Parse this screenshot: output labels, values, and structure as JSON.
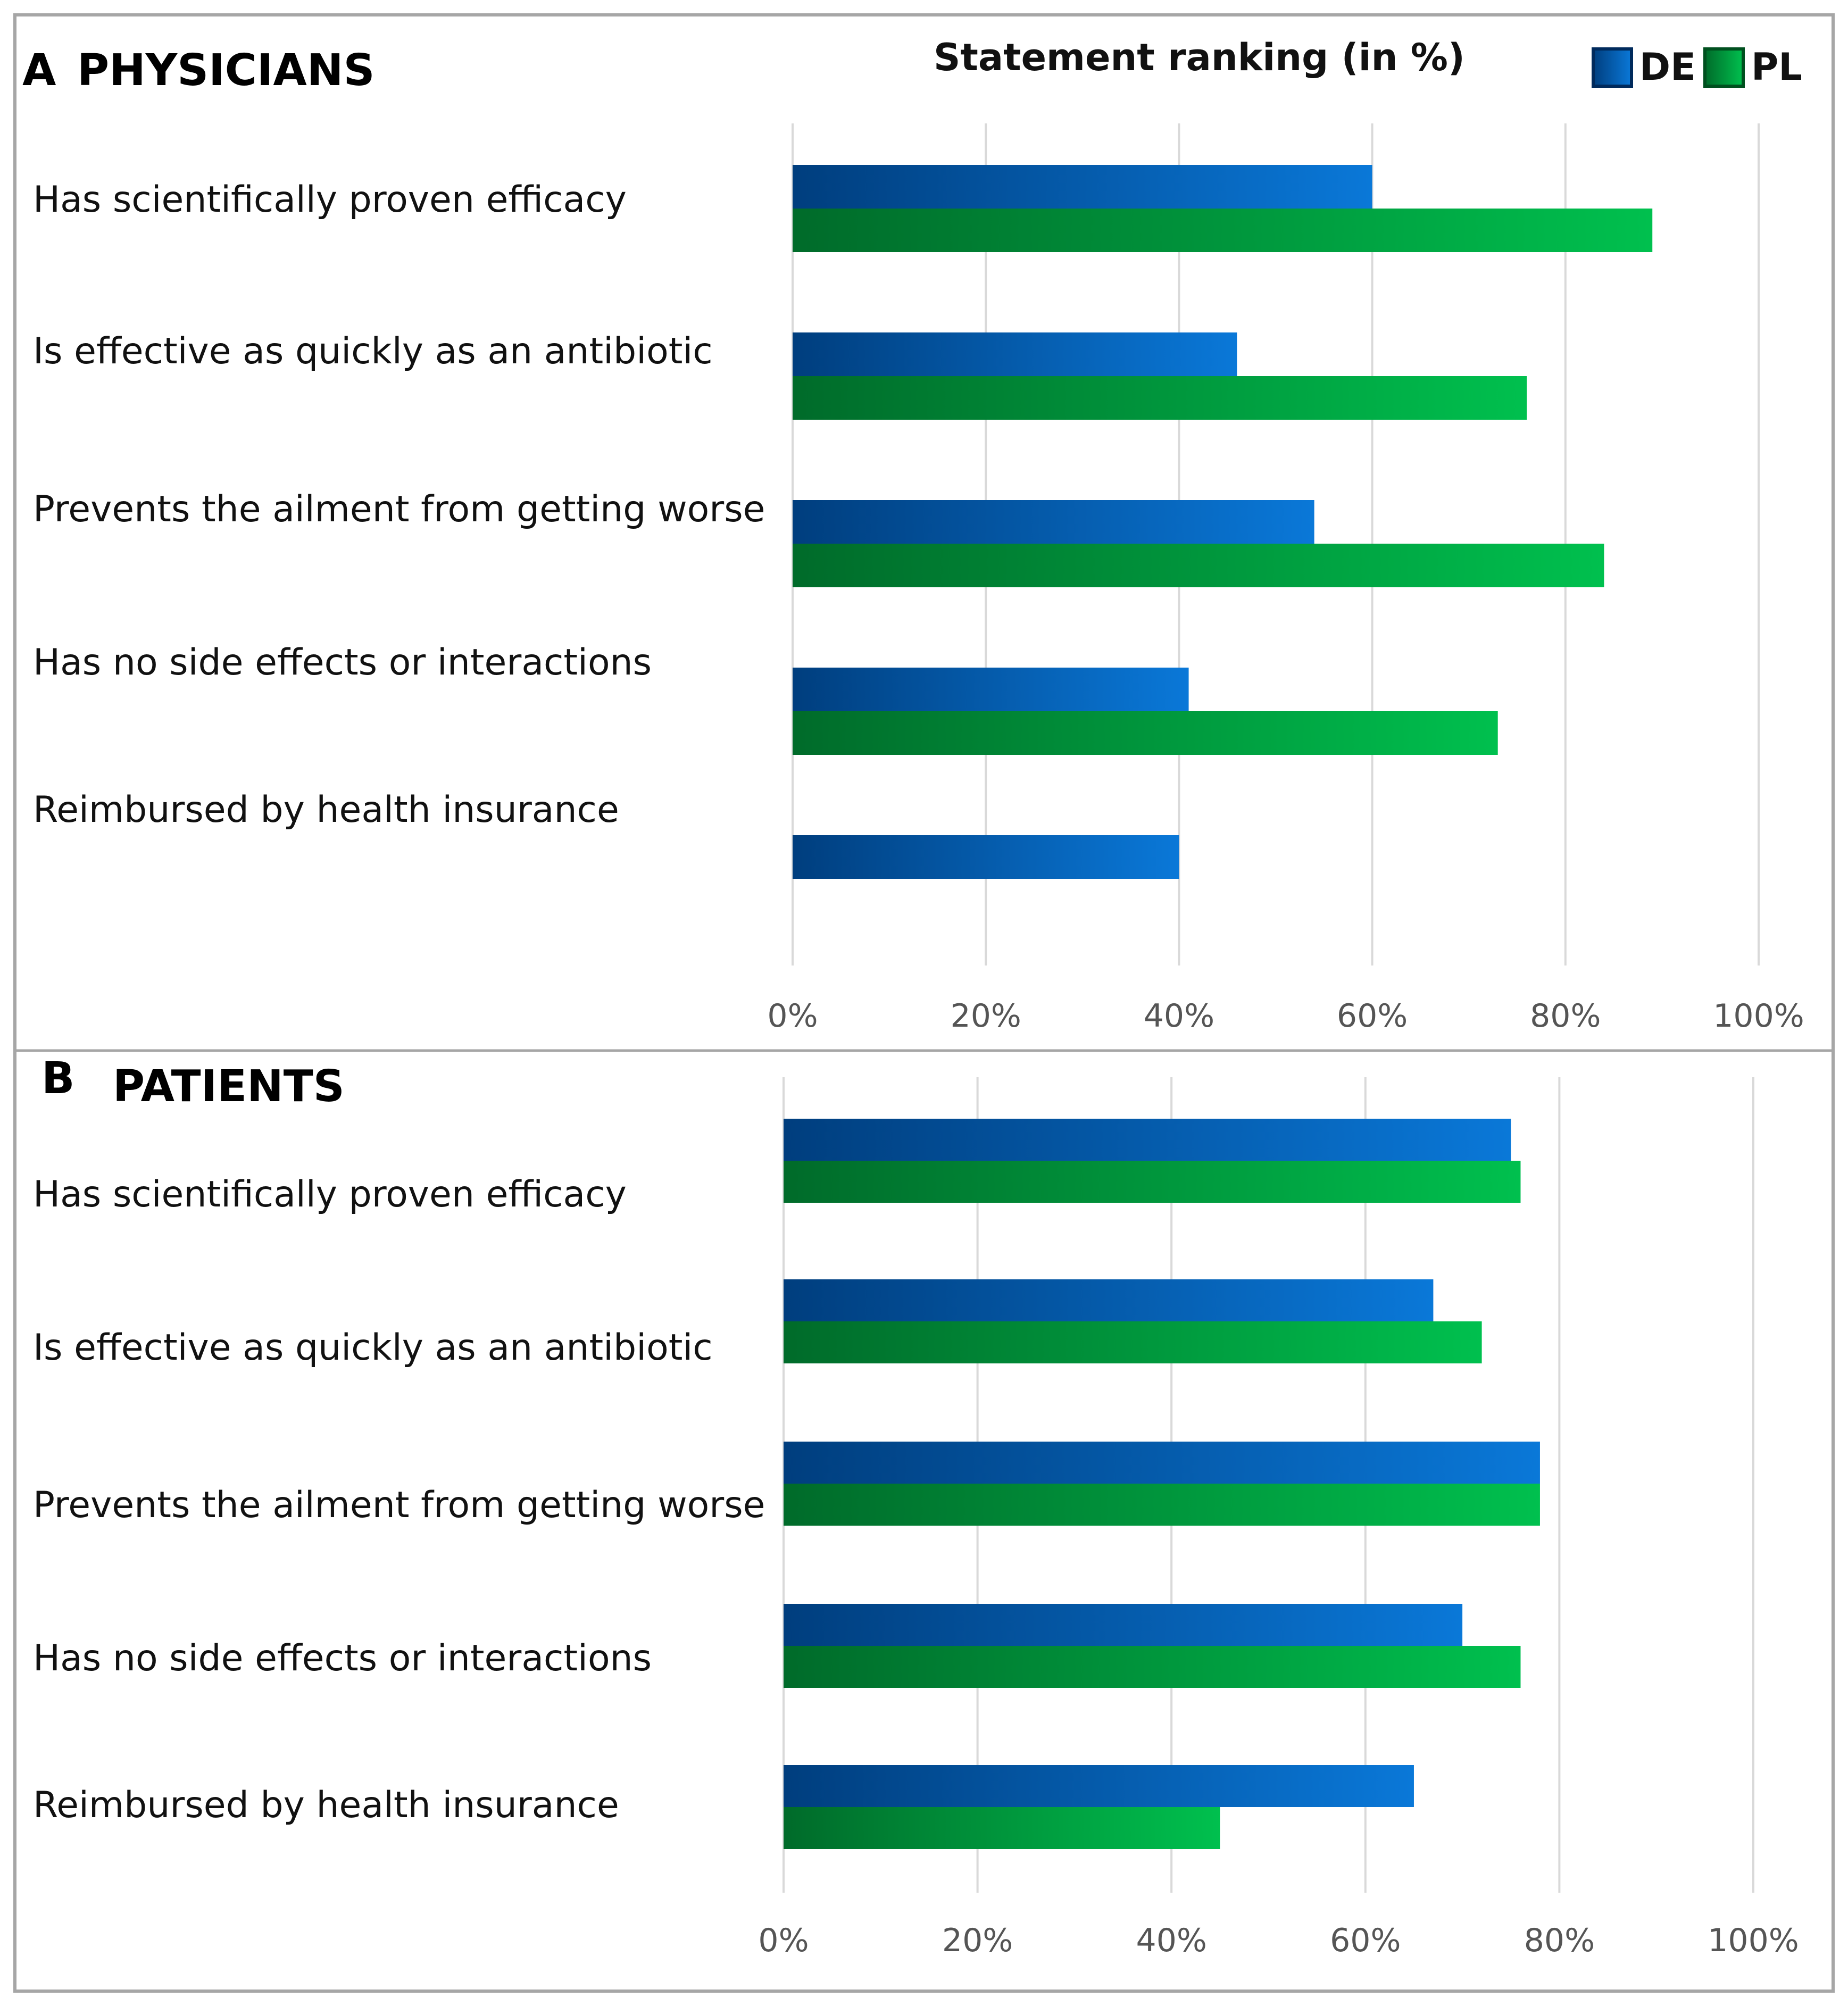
{
  "chart_data": [
    {
      "type": "bar",
      "orientation": "horizontal",
      "panel_letter": "A",
      "panel_title": "PHYSICIANS",
      "title": "Statement ranking (in %)",
      "categories": [
        "Has scientifically proven efficacy",
        "Is effective as quickly as an antibiotic",
        "Prevents the ailment from getting worse",
        "Has no side effects or interactions",
        "Reimbursed by health insurance"
      ],
      "series": [
        {
          "name": "DE",
          "values": [
            60,
            46,
            54,
            41,
            40
          ]
        },
        {
          "name": "PL",
          "values": [
            89,
            76,
            84,
            73,
            null
          ]
        }
      ],
      "xlim": [
        0,
        100
      ],
      "xticks": [
        "0%",
        "20%",
        "40%",
        "60%",
        "80%",
        "100%"
      ],
      "grid": true,
      "legend_position": "top-right"
    },
    {
      "type": "bar",
      "orientation": "horizontal",
      "panel_letter": "B",
      "panel_title": "PATIENTS",
      "categories": [
        "Has scientifically proven efficacy",
        "Is effective as quickly as an antibiotic",
        "Prevents the ailment from getting worse",
        "Has no side effects or interactions",
        "Reimbursed by health insurance"
      ],
      "series": [
        {
          "name": "DE",
          "values": [
            75,
            67,
            78,
            70,
            65
          ]
        },
        {
          "name": "PL",
          "values": [
            76,
            72,
            78,
            76,
            45
          ]
        }
      ],
      "xlim": [
        0,
        100
      ],
      "xticks": [
        "0%",
        "20%",
        "40%",
        "60%",
        "80%",
        "100%"
      ],
      "grid": true
    }
  ],
  "legend": [
    {
      "name": "DE",
      "color": "#0070C0"
    },
    {
      "name": "PL",
      "color": "#00B050"
    }
  ],
  "colors": {
    "de_dark": "#003E7E",
    "de_light": "#0A78D8",
    "pl_dark": "#006B2A",
    "pl_light": "#00C04E",
    "grid": "#D9D9D9",
    "frame": "#A6A6A6"
  }
}
